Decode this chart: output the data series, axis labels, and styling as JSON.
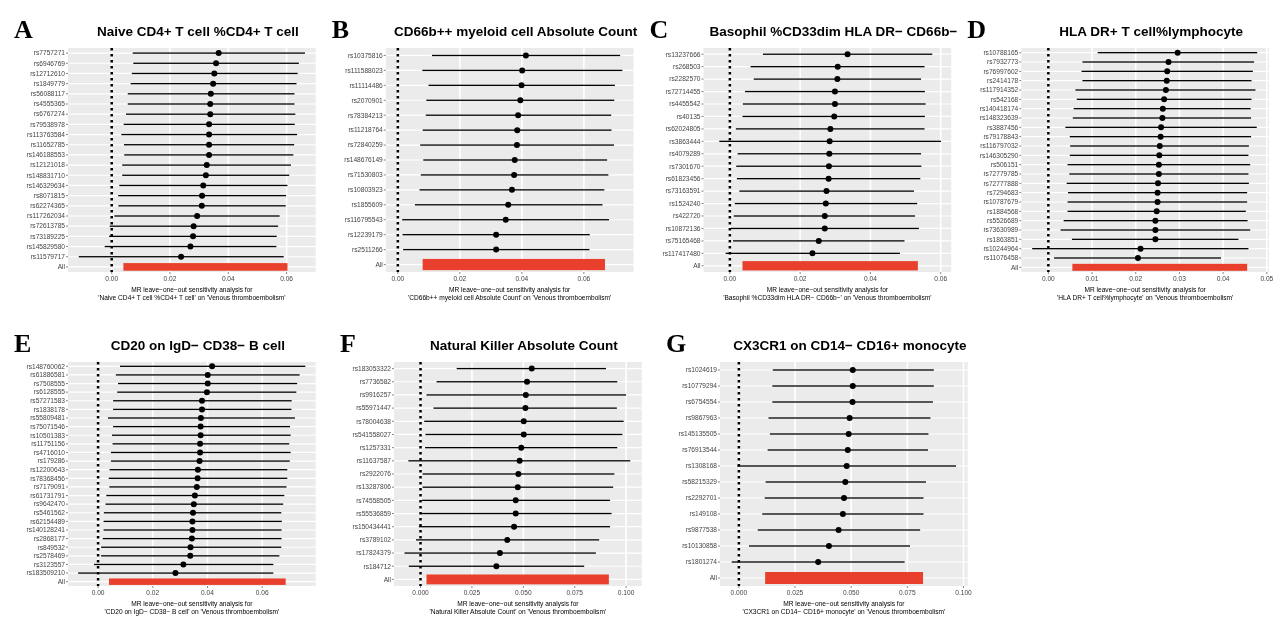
{
  "chart_data": [
    {
      "type": "scatter",
      "title": "Naive CD4+ T cell %CD4+ T cell",
      "xlabel": "MR leave−one−out sensitivity analysis for\n'Naive CD4+ T cell %CD4+ T cell' on 'Venous thromboembolism'",
      "annotations": [
        "A"
      ],
      "orientation": "horizontal",
      "grid": true,
      "marker": "circle",
      "categories": [
        "rs7757271",
        "rs6946769",
        "rs12712610",
        "rs1849779",
        "rs56088117",
        "rs4555365",
        "rs6767274",
        "rs79538978",
        "rs113763584",
        "rs11652785",
        "rs146188553",
        "rs12121018",
        "rs148831710",
        "rs146329634",
        "rs8071815",
        "rs62274365",
        "rs117262034",
        "rs72613785",
        "rs73189225",
        "rs145829580",
        "rs11579717",
        "All"
      ],
      "xlim": [
        -0.015,
        0.07
      ],
      "xticks": [
        {
          "value": 0,
          "label": "0.00"
        },
        {
          "value": 0.02,
          "label": "0.02"
        },
        {
          "value": 0.04,
          "label": "0.04"
        },
        {
          "value": 0.06,
          "label": "0.06"
        }
      ],
      "ref_lines": [
        {
          "axis": "x",
          "value": 0,
          "line_style": "dotted"
        }
      ],
      "series": [
        {
          "color": "#000000",
          "values": [
            0.0367,
            0.0358,
            0.0352,
            0.0348,
            0.034,
            0.0338,
            0.0338,
            0.0334,
            0.0334,
            0.0334,
            0.0334,
            0.0326,
            0.0323,
            0.0314,
            0.031,
            0.0309,
            0.0293,
            0.0281,
            0.0279,
            0.027,
            0.0238,
            null
          ],
          "errors": [
            [
              0.0072,
              0.0663
            ],
            [
              0.0074,
              0.0642
            ],
            [
              0.0069,
              0.0638
            ],
            [
              0.0065,
              0.0634
            ],
            [
              0.0055,
              0.0627
            ],
            [
              0.0055,
              0.0627
            ],
            [
              0.0049,
              0.063
            ],
            [
              0.0041,
              0.0628
            ],
            [
              0.0033,
              0.0636
            ],
            [
              0.0042,
              0.0626
            ],
            [
              0.0043,
              0.0623
            ],
            [
              0.0036,
              0.0615
            ],
            [
              0.0036,
              0.0609
            ],
            [
              0.0026,
              0.0603
            ],
            [
              0.0022,
              0.0598
            ],
            [
              0.0023,
              0.0597
            ],
            [
              0.0009,
              0.0576
            ],
            [
              -0.0007,
              0.0571
            ],
            [
              -0.0009,
              0.0566
            ],
            [
              -0.0024,
              0.0565
            ],
            [
              -0.0113,
              0.059
            ],
            null
          ]
        },
        {
          "type": "bar",
          "color": "#e8402c",
          "base": [
            null,
            null,
            null,
            null,
            null,
            null,
            null,
            null,
            null,
            null,
            null,
            null,
            null,
            null,
            null,
            null,
            null,
            null,
            null,
            null,
            null,
            0.004
          ],
          "values": [
            null,
            null,
            null,
            null,
            null,
            null,
            null,
            null,
            null,
            null,
            null,
            null,
            null,
            null,
            null,
            null,
            null,
            null,
            null,
            null,
            null,
            0.0563
          ]
        }
      ]
    },
    {
      "type": "scatter",
      "title": "CD66b++ myeloid cell Absolute Count",
      "xlabel": "MR leave−one−out sensitivity analysis for\n'CD66b++ myeloid cell Absolute Count' on 'Venous thromboembolism'",
      "annotations": [
        "B"
      ],
      "orientation": "horizontal",
      "grid": true,
      "marker": "circle",
      "categories": [
        "rs10375816",
        "rs111588023",
        "rs11114486",
        "rs2070901",
        "rs78384213",
        "rs11218764",
        "rs72840259",
        "rs148676149",
        "rs71530803",
        "rs10803923",
        "rs1855609",
        "rs116795543",
        "rs12239179",
        "rs2511266",
        "All"
      ],
      "xlim": [
        -0.0039,
        0.076
      ],
      "xticks": [
        {
          "value": 0,
          "label": "0.00"
        },
        {
          "value": 0.02,
          "label": "0.02"
        },
        {
          "value": 0.04,
          "label": "0.04"
        },
        {
          "value": 0.06,
          "label": "0.06"
        }
      ],
      "ref_lines": [
        {
          "axis": "x",
          "value": 0,
          "line_style": "dotted"
        }
      ],
      "series": [
        {
          "color": "#000000",
          "values": [
            0.0413,
            0.0401,
            0.0399,
            0.0395,
            0.0388,
            0.0385,
            0.0384,
            0.0377,
            0.0375,
            0.0368,
            0.0356,
            0.0348,
            0.0317,
            0.0317,
            null
          ],
          "errors": [
            [
              0.011,
              0.0717
            ],
            [
              0.0079,
              0.0724
            ],
            [
              0.0099,
              0.07
            ],
            [
              0.0092,
              0.0698
            ],
            [
              0.009,
              0.0688
            ],
            [
              0.008,
              0.0689
            ],
            [
              0.0072,
              0.0697
            ],
            [
              0.0082,
              0.0675
            ],
            [
              0.0074,
              0.0679
            ],
            [
              0.007,
              0.0666
            ],
            [
              0.0055,
              0.066
            ],
            [
              0.0014,
              0.0681
            ],
            [
              0.0015,
              0.0619
            ],
            [
              0.0017,
              0.0618
            ],
            null
          ]
        },
        {
          "type": "bar",
          "color": "#e8402c",
          "base": [
            null,
            null,
            null,
            null,
            null,
            null,
            null,
            null,
            null,
            null,
            null,
            null,
            null,
            null,
            0.008
          ],
          "values": [
            null,
            null,
            null,
            null,
            null,
            null,
            null,
            null,
            null,
            null,
            null,
            null,
            null,
            null,
            0.0588
          ]
        }
      ]
    },
    {
      "type": "scatter",
      "title": "Basophil %CD33dim HLA DR− CD66b−",
      "xlabel": "MR leave−one−out sensitivity analysis for\n'Basophil %CD33dim HLA DR− CD66b−' on 'Venous thromboembolism'",
      "annotations": [
        "C"
      ],
      "orientation": "horizontal",
      "grid": true,
      "marker": "circle",
      "categories": [
        "rs13237666",
        "rs268503",
        "rs2282570",
        "rs72714455",
        "rs4455542",
        "rs40135",
        "rs62024805",
        "rs3863444",
        "rs4079289",
        "rs7301670",
        "rs61823456",
        "rs73163591",
        "rs1524240",
        "rs422720",
        "rs10872136",
        "rs75165468",
        "rs117417480",
        "All"
      ],
      "xlim": [
        -0.0075,
        0.063
      ],
      "xticks": [
        {
          "value": 0,
          "label": "0.00"
        },
        {
          "value": 0.02,
          "label": "0.02"
        },
        {
          "value": 0.04,
          "label": "0.04"
        },
        {
          "value": 0.06,
          "label": "0.06"
        }
      ],
      "ref_lines": [
        {
          "axis": "x",
          "value": 0,
          "line_style": "dotted"
        }
      ],
      "series": [
        {
          "color": "#000000",
          "values": [
            0.0335,
            0.0307,
            0.0306,
            0.0299,
            0.0299,
            0.0297,
            0.0286,
            0.0284,
            0.0283,
            0.0282,
            0.0281,
            0.0275,
            0.0273,
            0.027,
            0.027,
            0.0253,
            0.0235,
            null
          ],
          "errors": [
            [
              0.0094,
              0.0576
            ],
            [
              0.0059,
              0.0554
            ],
            [
              0.0068,
              0.0544
            ],
            [
              0.0043,
              0.0555
            ],
            [
              0.0037,
              0.0557
            ],
            [
              0.0036,
              0.0555
            ],
            [
              0.0017,
              0.0554
            ],
            [
              -0.003,
              0.0601
            ],
            [
              0.0022,
              0.0544
            ],
            [
              0.0018,
              0.0545
            ],
            [
              0.002,
              0.0542
            ],
            [
              0.0027,
              0.0524
            ],
            [
              0.0014,
              0.0533
            ],
            [
              0.0011,
              0.0527
            ],
            [
              0.0003,
              0.0538
            ],
            [
              0.0009,
              0.0497
            ],
            [
              -0.0012,
              0.0484
            ],
            null
          ]
        },
        {
          "type": "bar",
          "color": "#e8402c",
          "base": [
            null,
            null,
            null,
            null,
            null,
            null,
            null,
            null,
            null,
            null,
            null,
            null,
            null,
            null,
            null,
            null,
            null,
            0.0036
          ],
          "values": [
            null,
            null,
            null,
            null,
            null,
            null,
            null,
            null,
            null,
            null,
            null,
            null,
            null,
            null,
            null,
            null,
            null,
            0.0499
          ]
        }
      ]
    },
    {
      "type": "scatter",
      "title": "HLA DR+ T cell%lymphocyte",
      "xlabel": "MR leave−one−out sensitivity analysis for\n'HLA DR+ T cell%lymphocyte' on 'Venous thromboembolism'",
      "annotations": [
        "D"
      ],
      "orientation": "horizontal",
      "grid": true,
      "marker": "circle",
      "categories": [
        "rs10788165",
        "rs7932773",
        "rs76997602",
        "rs2414178",
        "rs117914352",
        "rs542168",
        "rs140418174",
        "rs148323639",
        "rs3887456",
        "rs79178843",
        "rs116797032",
        "rs146305290",
        "rs506151",
        "rs72779785",
        "rs72777888",
        "rs7294683",
        "rs10787679",
        "rs1884568",
        "rs5526689",
        "rs73630989",
        "rs1863851",
        "rs10244964",
        "rs11076458",
        "All"
      ],
      "xlim": [
        -0.0062,
        0.0505
      ],
      "xticks": [
        {
          "value": 0,
          "label": "0.00"
        },
        {
          "value": 0.01,
          "label": "0.01"
        },
        {
          "value": 0.02,
          "label": "0.02"
        },
        {
          "value": 0.03,
          "label": "0.03"
        },
        {
          "value": 0.04,
          "label": "0.04"
        },
        {
          "value": 0.05,
          "label": "0.05"
        }
      ],
      "ref_lines": [
        {
          "axis": "x",
          "value": 0,
          "line_style": "dotted"
        }
      ],
      "series": [
        {
          "color": "#000000",
          "values": [
            0.0296,
            0.0275,
            0.0272,
            0.0271,
            0.0269,
            0.0265,
            0.0262,
            0.0261,
            0.0258,
            0.0257,
            0.0255,
            0.0254,
            0.0253,
            0.0253,
            0.0251,
            0.025,
            0.025,
            0.0248,
            0.0245,
            0.0245,
            0.0245,
            0.0211,
            0.0205,
            null
          ],
          "errors": [
            [
              0.0113,
              0.0478
            ],
            [
              0.0078,
              0.0471
            ],
            [
              0.0076,
              0.0468
            ],
            [
              0.0078,
              0.0465
            ],
            [
              0.0062,
              0.0474
            ],
            [
              0.0065,
              0.0465
            ],
            [
              0.0058,
              0.0463
            ],
            [
              0.0056,
              0.0464
            ],
            [
              0.0039,
              0.0477
            ],
            [
              0.0049,
              0.0464
            ],
            [
              0.005,
              0.0459
            ],
            [
              0.0049,
              0.0458
            ],
            [
              0.0044,
              0.0462
            ],
            [
              0.0048,
              0.0458
            ],
            [
              0.0042,
              0.0459
            ],
            [
              0.0045,
              0.0455
            ],
            [
              0.0044,
              0.0455
            ],
            [
              0.0044,
              0.0452
            ],
            [
              0.0035,
              0.0456
            ],
            [
              0.0028,
              0.0462
            ],
            [
              0.0054,
              0.0435
            ],
            [
              -0.0037,
              0.0458
            ],
            [
              0.0013,
              0.0395
            ],
            null
          ]
        },
        {
          "type": "bar",
          "color": "#e8402c",
          "base": [
            null,
            null,
            null,
            null,
            null,
            null,
            null,
            null,
            null,
            null,
            null,
            null,
            null,
            null,
            null,
            null,
            null,
            null,
            null,
            null,
            null,
            null,
            null,
            0.0055
          ],
          "values": [
            null,
            null,
            null,
            null,
            null,
            null,
            null,
            null,
            null,
            null,
            null,
            null,
            null,
            null,
            null,
            null,
            null,
            null,
            null,
            null,
            null,
            null,
            null,
            0.04
          ]
        }
      ]
    },
    {
      "type": "scatter",
      "title": "CD20 on IgD− CD38− B cell",
      "xlabel": "MR leave−one−out sensitivity analysis for\n'CD20 on IgD− CD38− B cell' on 'Venous thromboembolism'",
      "annotations": [
        "E"
      ],
      "orientation": "horizontal",
      "grid": true,
      "marker": "circle",
      "categories": [
        "rs148760062",
        "rs61886581",
        "rs7508555",
        "rs6128555",
        "rs57271583",
        "rs1838178",
        "rs55809481",
        "rs75071546",
        "rs10501383",
        "rs11751156",
        "rs4716010",
        "rs179286",
        "rs12200643",
        "rs78368456",
        "rs7179091",
        "rs61731791",
        "rs9642470",
        "rs5461562",
        "rs62154489",
        "rs140128241",
        "rs2868177",
        "rs849532",
        "rs2578469",
        "rs3123557",
        "rs183509210",
        "All"
      ],
      "xlim": [
        -0.011,
        0.0796
      ],
      "xticks": [
        {
          "value": 0,
          "label": "0.00"
        },
        {
          "value": 0.02,
          "label": "0.02"
        },
        {
          "value": 0.04,
          "label": "0.04"
        },
        {
          "value": 0.06,
          "label": "0.06"
        }
      ],
      "ref_lines": [
        {
          "axis": "x",
          "value": 0,
          "line_style": "dotted"
        }
      ],
      "series": [
        {
          "color": "#000000",
          "values": [
            0.0417,
            0.0401,
            0.0401,
            0.0398,
            0.038,
            0.038,
            0.0376,
            0.0375,
            0.0375,
            0.0373,
            0.0373,
            0.0371,
            0.0365,
            0.0364,
            0.0361,
            0.0354,
            0.035,
            0.0347,
            0.0345,
            0.0345,
            0.0343,
            0.0338,
            0.0337,
            0.0312,
            0.0283,
            null
          ],
          "errors": [
            [
              0.008,
              0.0758
            ],
            [
              0.0065,
              0.0737
            ],
            [
              0.0073,
              0.0728
            ],
            [
              0.007,
              0.0725
            ],
            [
              0.0055,
              0.0708
            ],
            [
              0.0055,
              0.0707
            ],
            [
              0.0036,
              0.072
            ],
            [
              0.0055,
              0.0702
            ],
            [
              0.0051,
              0.0704
            ],
            [
              0.0053,
              0.0699
            ],
            [
              0.0047,
              0.0704
            ],
            [
              0.0047,
              0.0701
            ],
            [
              0.0042,
              0.0692
            ],
            [
              0.0039,
              0.0692
            ],
            [
              0.0041,
              0.0689
            ],
            [
              0.003,
              0.0681
            ],
            [
              0.0027,
              0.0677
            ],
            [
              0.0021,
              0.067
            ],
            [
              0.002,
              0.0672
            ],
            [
              0.002,
              0.0671
            ],
            [
              0.0017,
              0.0671
            ],
            [
              0.0011,
              0.067
            ],
            [
              0.0011,
              0.0663
            ],
            [
              -0.0015,
              0.0641
            ],
            [
              -0.0073,
              0.0641
            ],
            null
          ]
        },
        {
          "type": "bar",
          "color": "#e8402c",
          "base": [
            null,
            null,
            null,
            null,
            null,
            null,
            null,
            null,
            null,
            null,
            null,
            null,
            null,
            null,
            null,
            null,
            null,
            null,
            null,
            null,
            null,
            null,
            null,
            null,
            null,
            0.004
          ],
          "values": [
            null,
            null,
            null,
            null,
            null,
            null,
            null,
            null,
            null,
            null,
            null,
            null,
            null,
            null,
            null,
            null,
            null,
            null,
            null,
            null,
            null,
            null,
            null,
            null,
            null,
            0.0646
          ]
        }
      ]
    },
    {
      "type": "scatter",
      "title": "Natural Killer Absolute Count",
      "xlabel": "MR leave−one−out sensitivity analysis for\n'Natural Killer Absolute Count' on 'Venous thromboembolism'",
      "annotations": [
        "F"
      ],
      "orientation": "horizontal",
      "grid": true,
      "marker": "circle",
      "categories": [
        "rs183053322",
        "rs7736582",
        "rs9916257",
        "rs55971447",
        "rs78004638",
        "rs541558027",
        "rs1257331",
        "rs11637587",
        "rs2922076",
        "rs13287806",
        "rs74558505",
        "rs55536859",
        "rs150434441",
        "rs3789102",
        "rs17824379",
        "rs184712",
        "All"
      ],
      "xlim": [
        -0.0129,
        0.1076
      ],
      "xticks": [
        {
          "value": 0,
          "label": "0.000"
        },
        {
          "value": 0.025,
          "label": "0.025"
        },
        {
          "value": 0.05,
          "label": "0.050"
        },
        {
          "value": 0.075,
          "label": "0.075"
        },
        {
          "value": 0.1,
          "label": "0.100"
        }
      ],
      "ref_lines": [
        {
          "axis": "x",
          "value": 0,
          "line_style": "dotted"
        }
      ],
      "series": [
        {
          "color": "#000000",
          "values": [
            0.0541,
            0.0518,
            0.0512,
            0.051,
            0.0502,
            0.0502,
            0.049,
            0.0482,
            0.0476,
            0.0473,
            0.0463,
            0.0463,
            0.0455,
            0.0422,
            0.0386,
            0.0369,
            null
          ],
          "errors": [
            [
              0.0176,
              0.0902
            ],
            [
              0.0078,
              0.0957
            ],
            [
              0.0029,
              0.1
            ],
            [
              0.0063,
              0.0955
            ],
            [
              0.0018,
              0.0988
            ],
            [
              0.0024,
              0.0982
            ],
            [
              0.0022,
              0.0957
            ],
            [
              -0.0059,
              0.102
            ],
            [
              0.001,
              0.0943
            ],
            [
              0.001,
              0.0937
            ],
            [
              0.0006,
              0.0922
            ],
            [
              0,
              0.0929
            ],
            [
              -0.0008,
              0.0922
            ],
            [
              -0.0022,
              0.0869
            ],
            [
              -0.0078,
              0.0853
            ],
            [
              -0.0057,
              0.0796
            ],
            null
          ]
        },
        {
          "type": "bar",
          "color": "#e8402c",
          "base": [
            null,
            null,
            null,
            null,
            null,
            null,
            null,
            null,
            null,
            null,
            null,
            null,
            null,
            null,
            null,
            null,
            0.0029
          ],
          "values": [
            null,
            null,
            null,
            null,
            null,
            null,
            null,
            null,
            null,
            null,
            null,
            null,
            null,
            null,
            null,
            null,
            0.0887
          ]
        }
      ]
    },
    {
      "type": "scatter",
      "title": "CX3CR1 on CD14− CD16+ monocyte",
      "xlabel": "MR leave−one−out sensitivity analysis for\n'CX3CR1 on CD14− CD16+ monocyte' on 'Venous thromboembolism'",
      "annotations": [
        "G"
      ],
      "orientation": "horizontal",
      "grid": true,
      "marker": "circle",
      "categories": [
        "rs1024619",
        "rs10779294",
        "rs6754554",
        "rs9867963",
        "rs145135505",
        "rs76913544",
        "rs1308168",
        "rs58215329",
        "rs2292701",
        "rs149108",
        "rs9877538",
        "rs10130858",
        "rs1801274",
        "All"
      ],
      "xlim": [
        -0.0084,
        0.1019
      ],
      "xticks": [
        {
          "value": 0,
          "label": "0.000"
        },
        {
          "value": 0.025,
          "label": "0.025"
        },
        {
          "value": 0.05,
          "label": "0.050"
        },
        {
          "value": 0.075,
          "label": "0.075"
        },
        {
          "value": 0.1,
          "label": "0.100"
        }
      ],
      "ref_lines": [
        {
          "axis": "x",
          "value": 0,
          "line_style": "dotted"
        }
      ],
      "series": [
        {
          "color": "#000000",
          "values": [
            0.0507,
            0.0507,
            0.0506,
            0.0493,
            0.0489,
            0.0485,
            0.048,
            0.0474,
            0.0468,
            0.0463,
            0.0444,
            0.0401,
            0.0353,
            null
          ],
          "errors": [
            [
              0.0151,
              0.0868
            ],
            [
              0.0149,
              0.0868
            ],
            [
              0.0149,
              0.0864
            ],
            [
              0.0132,
              0.0853
            ],
            [
              0.0138,
              0.0844
            ],
            [
              0.0128,
              0.0842
            ],
            [
              -0.0007,
              0.0967
            ],
            [
              0.0119,
              0.0833
            ],
            [
              0.0115,
              0.0822
            ],
            [
              0.0104,
              0.0822
            ],
            [
              0.0084,
              0.0807
            ],
            [
              0.0045,
              0.0762
            ],
            [
              -0.0032,
              0.0738
            ],
            null
          ]
        },
        {
          "type": "bar",
          "color": "#e8402c",
          "base": [
            null,
            null,
            null,
            null,
            null,
            null,
            null,
            null,
            null,
            null,
            null,
            null,
            null,
            0.0117
          ],
          "values": [
            null,
            null,
            null,
            null,
            null,
            null,
            null,
            null,
            null,
            null,
            null,
            null,
            null,
            0.0703
          ]
        }
      ]
    }
  ]
}
